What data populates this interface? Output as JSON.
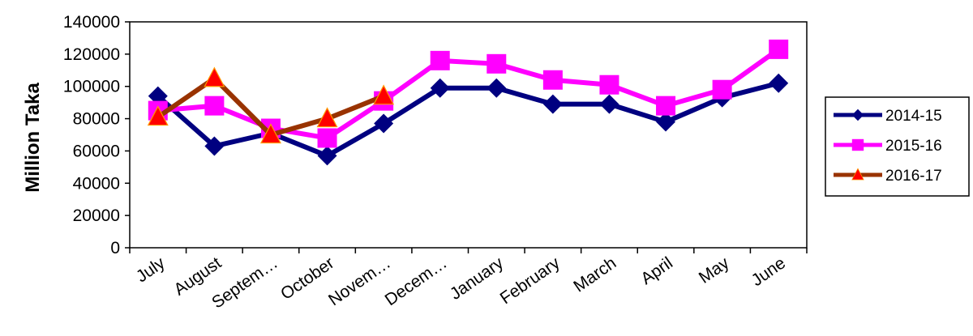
{
  "chart_data": {
    "type": "line",
    "title": "",
    "xlabel": "",
    "ylabel": "Million Taka",
    "ylim": [
      0,
      140000
    ],
    "yticks": [
      0,
      20000,
      40000,
      60000,
      80000,
      100000,
      120000,
      140000
    ],
    "categories": [
      "July",
      "August",
      "Septem…",
      "October",
      "Novem…",
      "Decem…",
      "January",
      "February",
      "March",
      "April",
      "May",
      "June"
    ],
    "legend_position": "right",
    "grid": false,
    "series": [
      {
        "name": "2014-15",
        "color": "#000080",
        "marker": "diamond",
        "values": [
          94000,
          63000,
          71000,
          57000,
          77000,
          99000,
          99000,
          89000,
          89000,
          78000,
          93000,
          102000
        ]
      },
      {
        "name": "2015-16",
        "color": "#ff00ff",
        "marker": "square",
        "values": [
          85000,
          88000,
          74000,
          68000,
          91000,
          116000,
          114000,
          104000,
          101000,
          88000,
          98000,
          123000
        ]
      },
      {
        "name": "2016-17",
        "color": "#993300",
        "marker_color": "#ff0000",
        "marker": "triangle",
        "values": [
          81000,
          105000,
          70000,
          80000,
          94000,
          null,
          null,
          null,
          null,
          null,
          null,
          null
        ]
      }
    ]
  }
}
